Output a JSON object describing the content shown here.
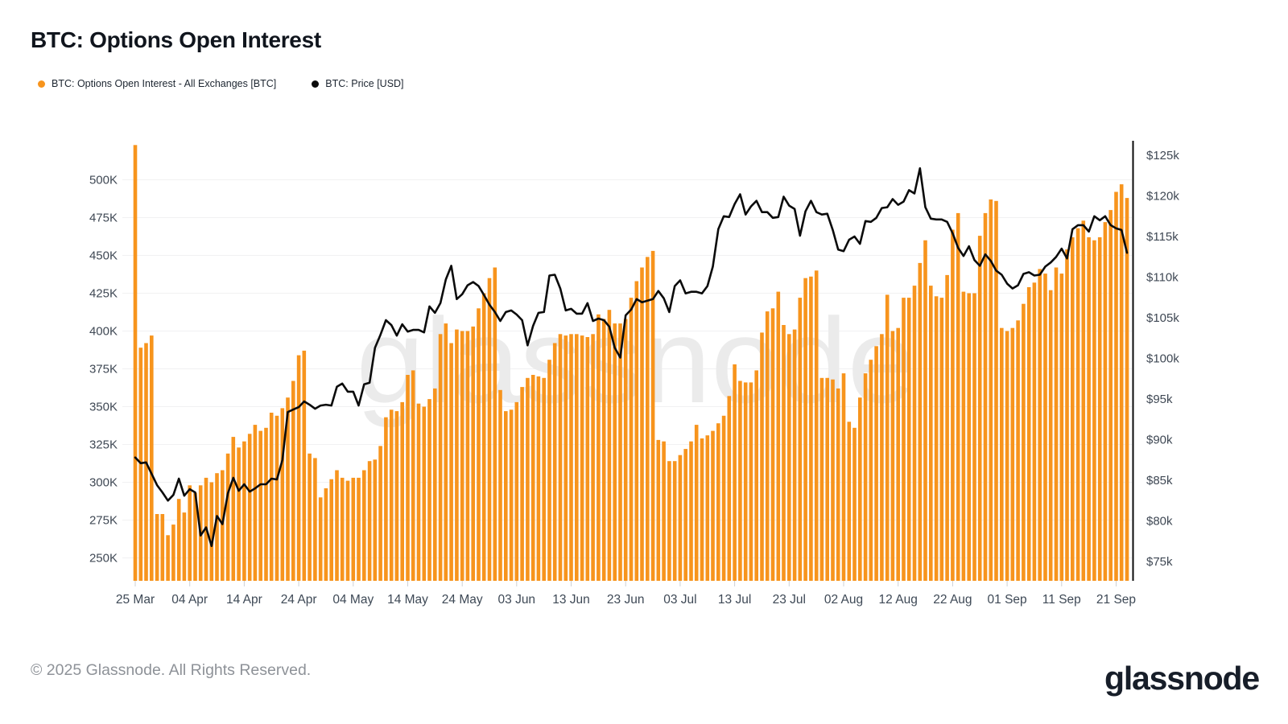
{
  "header": {
    "title": "BTC: Options Open Interest"
  },
  "watermark": "glassnode",
  "watermark_color": "#ebebeb",
  "footer": {
    "copyright": "© 2025 Glassnode. All Rights Reserved.",
    "brand": "glassnode"
  },
  "chart_data": {
    "type": "bar+line combo",
    "x_start_date": "25 Mar 2025",
    "x_end_date": "23 Sep 2025",
    "x_interval": "daily",
    "x_tick_every": 10,
    "x_tick_labels": [
      "25 Mar",
      "04 Apr",
      "14 Apr",
      "24 Apr",
      "04 May",
      "14 May",
      "24 May",
      "03 Jun",
      "13 Jun",
      "23 Jun",
      "03 Jul",
      "13 Jul",
      "23 Jul",
      "02 Aug",
      "12 Aug",
      "22 Aug",
      "01 Sep",
      "11 Sep",
      "21 Sep"
    ],
    "left_axis": {
      "unit": "BTC",
      "ticks": [
        "250K",
        "275K",
        "300K",
        "325K",
        "350K",
        "375K",
        "400K",
        "425K",
        "450K",
        "475K",
        "500K"
      ],
      "tick_min": 250000,
      "tick_max": 500000
    },
    "right_axis": {
      "unit": "USD",
      "ticks": [
        "$75k",
        "$80k",
        "$85k",
        "$90k",
        "$95k",
        "$100k",
        "$105k",
        "$110k",
        "$115k",
        "$120k",
        "$125k"
      ],
      "tick_min": 75000,
      "tick_max": 125000
    },
    "grid": "horizontal only",
    "legend_position": "top-left",
    "series": [
      {
        "name": "BTC: Options Open Interest - All Exchanges [BTC]",
        "type": "bar",
        "color": "#F7941D",
        "unit": "K BTC",
        "values": [
          523,
          389,
          392,
          397,
          279,
          279,
          265,
          272,
          289,
          280,
          298,
          293,
          298,
          303,
          300,
          306,
          308,
          319,
          330,
          323,
          327,
          332,
          338,
          334,
          336,
          346,
          344,
          349,
          356,
          367,
          384,
          387,
          319,
          316,
          290,
          296,
          302,
          308,
          303,
          301,
          303,
          303,
          308,
          314,
          315,
          324,
          343,
          348,
          347,
          353,
          371,
          374,
          352,
          350,
          355,
          362,
          398,
          405,
          392,
          401,
          400,
          400,
          403,
          415,
          425,
          435,
          442,
          361,
          347,
          348,
          353,
          363,
          369,
          371,
          370,
          369,
          381,
          392,
          398,
          397,
          398,
          398,
          397,
          396,
          398,
          411,
          408,
          414,
          405,
          405,
          408,
          422,
          433,
          442,
          449,
          453,
          328,
          327,
          314,
          314,
          318,
          322,
          327,
          338,
          329,
          331,
          334,
          339,
          344,
          357,
          378,
          367,
          366,
          366,
          374,
          399,
          413,
          415,
          426,
          404,
          398,
          401,
          422,
          435,
          436,
          440,
          369,
          369,
          368,
          362,
          372,
          340,
          336,
          356,
          372,
          381,
          390,
          398,
          424,
          400,
          402,
          422,
          422,
          430,
          445,
          460,
          430,
          423,
          422,
          437,
          467,
          478,
          426,
          425,
          425,
          463,
          478,
          487,
          486,
          402,
          400,
          402,
          407,
          418,
          429,
          432,
          441,
          438,
          427,
          442,
          438,
          454,
          462,
          468,
          473,
          462,
          460,
          462,
          472,
          480,
          492,
          497,
          488
        ]
      },
      {
        "name": "BTC: Price [USD]",
        "type": "line",
        "color": "#0b0b0b",
        "unit": "k USD",
        "values": [
          87.8,
          87.1,
          87.2,
          85.8,
          84.4,
          83.5,
          82.5,
          83.2,
          85.2,
          83.1,
          83.9,
          83.5,
          78.2,
          79.2,
          76.9,
          80.6,
          79.6,
          83.4,
          85.3,
          83.7,
          84.5,
          83.6,
          84.0,
          84.5,
          84.5,
          85.2,
          85.1,
          87.5,
          93.4,
          93.7,
          94.0,
          94.7,
          94.3,
          93.8,
          94.2,
          94.3,
          94.2,
          96.5,
          96.9,
          95.9,
          95.9,
          94.2,
          96.8,
          97.0,
          101.3,
          102.9,
          104.7,
          104.1,
          102.8,
          104.2,
          103.3,
          103.5,
          103.5,
          103.2,
          106.4,
          105.6,
          106.8,
          109.7,
          111.4,
          107.3,
          107.9,
          109.0,
          109.4,
          108.9,
          107.8,
          106.6,
          105.7,
          104.6,
          105.7,
          105.9,
          105.4,
          104.7,
          101.6,
          104.0,
          105.6,
          105.7,
          110.2,
          110.3,
          108.6,
          105.9,
          106.1,
          105.5,
          105.5,
          106.8,
          104.6,
          104.9,
          104.7,
          103.9,
          101.3,
          100.1,
          105.3,
          106.0,
          107.3,
          106.9,
          107.1,
          107.3,
          108.3,
          107.4,
          105.7,
          108.9,
          109.6,
          108.0,
          108.2,
          108.2,
          108.0,
          108.9,
          111.3,
          115.9,
          117.5,
          117.4,
          119.0,
          120.2,
          117.7,
          118.7,
          119.4,
          118.0,
          118.0,
          117.3,
          117.4,
          119.9,
          118.8,
          118.4,
          115.1,
          118.1,
          119.4,
          118.0,
          117.7,
          117.8,
          115.8,
          113.4,
          113.2,
          114.6,
          115.0,
          114.1,
          116.9,
          116.8,
          117.3,
          118.5,
          118.6,
          119.6,
          118.9,
          119.3,
          120.7,
          120.3,
          123.4,
          118.6,
          117.2,
          117.1,
          117.1,
          116.8,
          115.4,
          113.6,
          112.6,
          113.8,
          112.1,
          111.4,
          112.8,
          112.0,
          110.8,
          110.3,
          109.2,
          108.6,
          109.0,
          110.4,
          110.6,
          110.2,
          110.3,
          111.3,
          111.8,
          112.5,
          113.5,
          112.3,
          115.9,
          116.4,
          116.4,
          115.6,
          117.5,
          117.0,
          117.5,
          116.4,
          116.0,
          115.8,
          113.0
        ]
      }
    ]
  }
}
